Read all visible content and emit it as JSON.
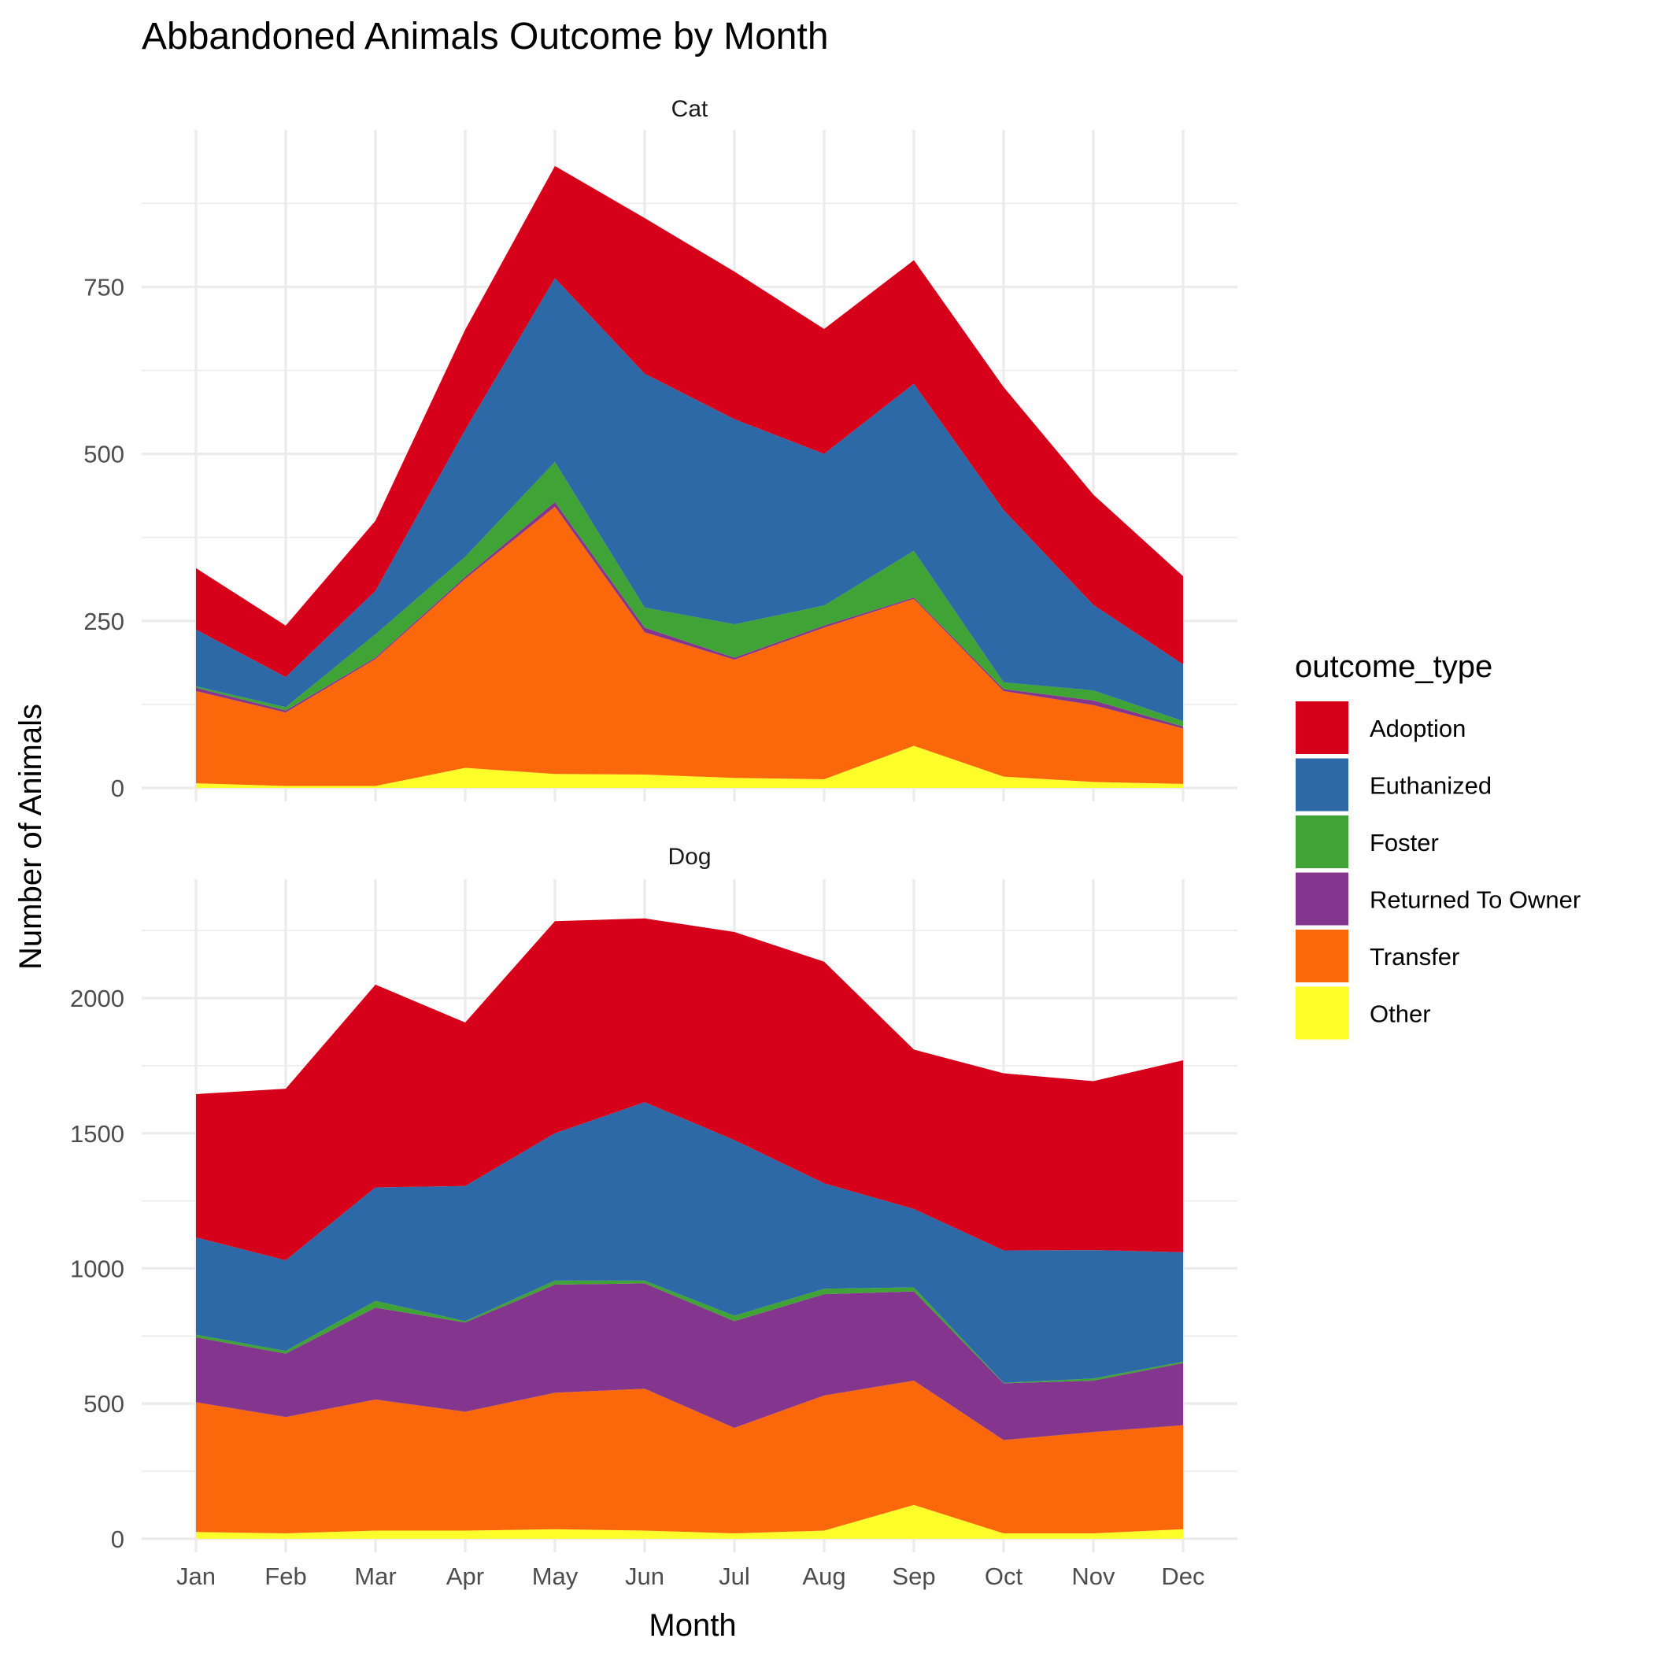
{
  "chart_data": {
    "type": "area",
    "stacked": true,
    "title": "Abbandoned Animals Outcome by Month",
    "xlabel": "Month",
    "ylabel": "Number of Animals",
    "categories": [
      "Jan",
      "Feb",
      "Mar",
      "Apr",
      "May",
      "Jun",
      "Jul",
      "Aug",
      "Sep",
      "Oct",
      "Nov",
      "Dec"
    ],
    "legend": {
      "title": "outcome_type",
      "position": "right",
      "entries": [
        "Adoption",
        "Euthanized",
        "Foster",
        "Returned To Owner",
        "Transfer",
        "Other"
      ]
    },
    "colors": {
      "Adoption": "#d7001a",
      "Euthanized": "#2e69a7",
      "Foster": "#40a335",
      "Returned To Owner": "#84368f",
      "Transfer": "#fb670b",
      "Other": "#fefe2a"
    },
    "grid": true,
    "panels": [
      {
        "label": "Cat",
        "ylim": [
          -20,
          985
        ],
        "yticks": [
          0,
          250,
          500,
          750
        ],
        "series": [
          {
            "name": "Other",
            "values": [
              7,
              3,
              3,
              30,
              21,
              20,
              15,
              13,
              63,
              17,
              9,
              6
            ]
          },
          {
            "name": "Transfer",
            "values": [
              138,
              110,
              190,
              283,
              400,
              213,
              177,
              227,
              220,
              128,
              115,
              83
            ]
          },
          {
            "name": "Returned To Owner",
            "values": [
              5,
              3,
              2,
              3,
              7,
              7,
              3,
              3,
              2,
              3,
              7,
              3
            ]
          },
          {
            "name": "Foster",
            "values": [
              2,
              5,
              35,
              30,
              60,
              30,
              50,
              30,
              70,
              10,
              15,
              8
            ]
          },
          {
            "name": "Euthanized",
            "values": [
              85,
              45,
              65,
              190,
              275,
              350,
              307,
              227,
              250,
              258,
              128,
              85
            ]
          },
          {
            "name": "Adoption",
            "values": [
              92,
              77,
              105,
              150,
              168,
              233,
              221,
              187,
              185,
              184,
              165,
              132
            ]
          }
        ]
      },
      {
        "label": "Dog",
        "ylim": [
          -50,
          2440
        ],
        "yticks": [
          0,
          500,
          1000,
          1500,
          2000
        ],
        "series": [
          {
            "name": "Other",
            "values": [
              25,
              20,
              30,
              30,
              35,
              30,
              20,
              30,
              125,
              20,
              20,
              35
            ]
          },
          {
            "name": "Transfer",
            "values": [
              480,
              430,
              485,
              440,
              505,
              525,
              390,
              500,
              460,
              345,
              375,
              385
            ]
          },
          {
            "name": "Returned To Owner",
            "values": [
              240,
              235,
              340,
              330,
              400,
              390,
              395,
              375,
              330,
              210,
              190,
              230
            ]
          },
          {
            "name": "Foster",
            "values": [
              10,
              10,
              25,
              5,
              15,
              10,
              20,
              20,
              15,
              2,
              8,
              5
            ]
          },
          {
            "name": "Euthanized",
            "values": [
              360,
              335,
              420,
              500,
              545,
              660,
              650,
              390,
              290,
              490,
              475,
              405
            ]
          },
          {
            "name": "Adoption",
            "values": [
              530,
              635,
              750,
              605,
              785,
              680,
              770,
              820,
              590,
              655,
              625,
              710
            ]
          }
        ]
      }
    ]
  }
}
